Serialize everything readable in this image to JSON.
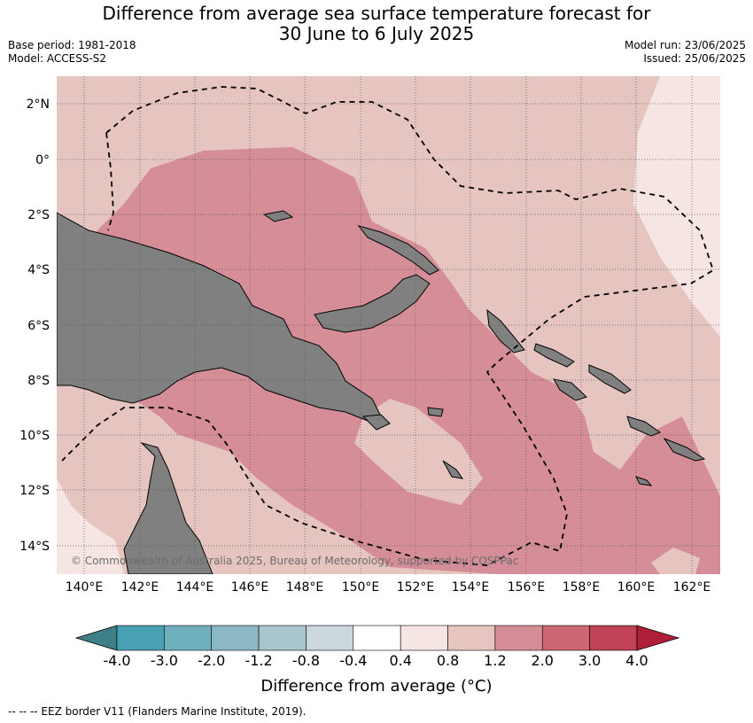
{
  "title_line1": "Difference from average sea surface temperature forecast for",
  "title_line2": "30 June to 6 July 2025",
  "base_period": "Base period: 1981-2018",
  "model": "Model: ACCESS-S2",
  "model_run": "Model run: 23/06/2025",
  "issued": "Issued: 25/06/2025",
  "lat_labels": [
    "2°N",
    "0°",
    "2°S",
    "4°S",
    "6°S",
    "8°S",
    "10°S",
    "12°S",
    "14°S"
  ],
  "lon_labels": [
    "140°E",
    "142°E",
    "144°E",
    "146°E",
    "148°E",
    "150°E",
    "152°E",
    "154°E",
    "156°E",
    "158°E",
    "160°E",
    "162°E"
  ],
  "copyright": "© Commonwealth of Australia 2025, Bureau of Meteorology, supported by COSPPac",
  "colorbar": {
    "title": "Difference from average (°C)",
    "ticks": [
      "-4.0",
      "-3.0",
      "-2.0",
      "-1.2",
      "-0.8",
      "-0.4",
      "0.4",
      "0.8",
      "1.2",
      "2.0",
      "3.0",
      "4.0"
    ],
    "colors": [
      "#3e7f88",
      "#48a1b3",
      "#70afbe",
      "#8cb7c4",
      "#a8c6cc",
      "#ccd7dc",
      "#ffffff",
      "#f5e6e4",
      "#e6c5c1",
      "#d58e97",
      "#cb6872",
      "#bf4355",
      "#b01f3a"
    ]
  },
  "colors": {
    "land": "#808080",
    "anom_0_4_0_8": "#f5e6e4",
    "anom_0_8_1_2": "#e6c5c1",
    "anom_1_2_2_0": "#d58e97"
  },
  "footer": "-- -- -- EEZ border V11 (Flanders Marine Institute, 2019)."
}
